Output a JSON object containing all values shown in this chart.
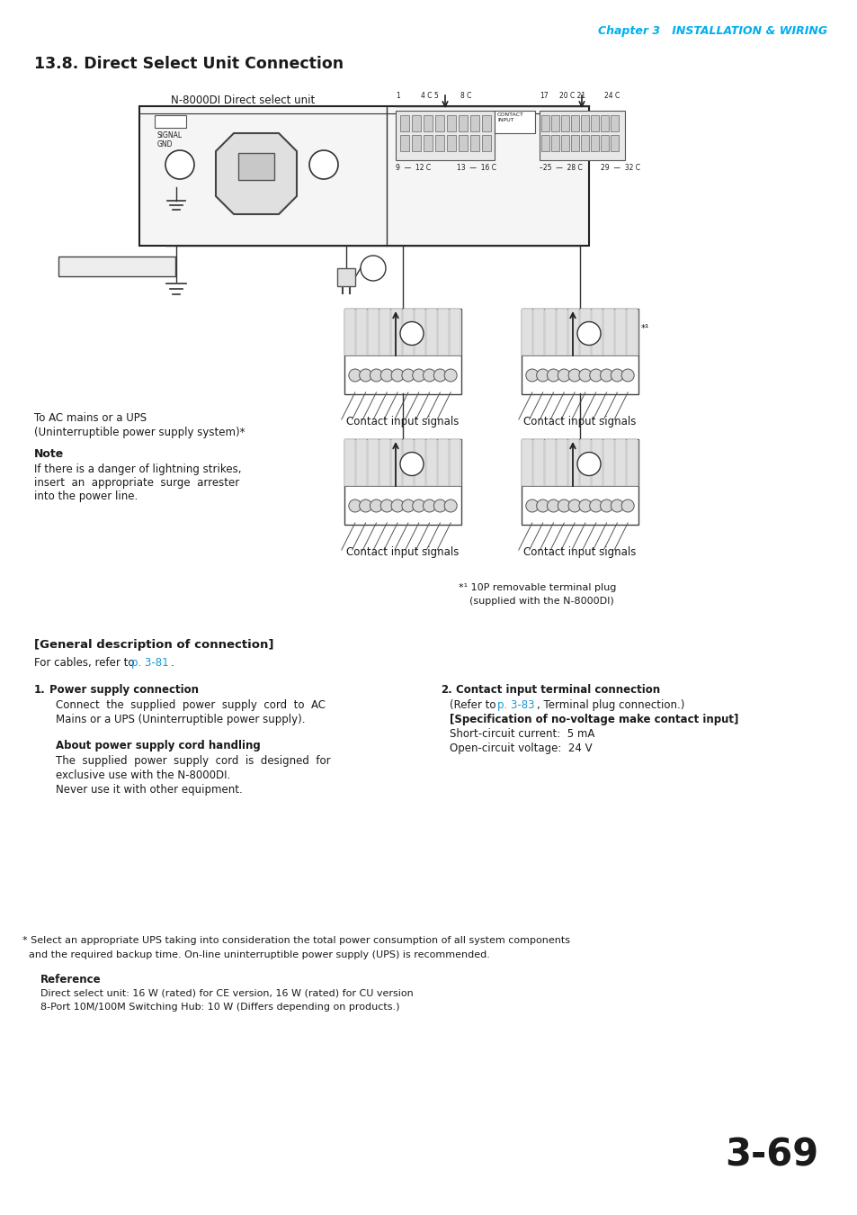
{
  "page_header_chapter": "Chapter 3   INSTALLATION & WIRING",
  "page_header_color": "#00AEEF",
  "section_title": "13.8. Direct Select Unit Connection",
  "diagram_label": "N-8000DI Direct select unit",
  "page_number": "3-69",
  "bg_color": "#ffffff",
  "text_color": "#1a1a1a",
  "blue_color": "#1a96d4",
  "general_desc_title": "[General description of connection]",
  "cables_refer_text1": "For cables, refer to ",
  "cables_refer_link": "p. 3-81",
  "cables_refer_text2": ".",
  "section1_title_num": "1.",
  "section1_title_text": "Power supply connection",
  "section1_body": [
    "Connect  the  supplied  power  supply  cord  to  AC",
    "Mains or a UPS (Uninterruptible power supply)."
  ],
  "section1_sub_title": "About power supply cord handling",
  "section1_sub_body": [
    "The  supplied  power  supply  cord  is  designed  for",
    "exclusive use with the N-8000DI.",
    "Never use it with other equipment."
  ],
  "section2_title_num": "2.",
  "section2_title_text": "Contact input terminal connection",
  "section2_body1": "(Refer to ",
  "section2_body1_link": "p. 3-83",
  "section2_body1_text2": ", Terminal plug connection.)",
  "section2_bold": "[Specification of no-voltage make contact input]",
  "section2_specs": [
    "Short-circuit current:  5 mA",
    "Open-circuit voltage:  24 V"
  ],
  "footnote_star": "* Select an appropriate UPS taking into consideration the total power consumption of all system components",
  "footnote_star2": "  and the required backup time. On-line uninterruptible power supply (UPS) is recommended.",
  "reference_title": "Reference",
  "reference_body": [
    "Direct select unit: 16 W (rated) for CE version, 16 W (rated) for CU version",
    "8-Port 10M/100M Switching Hub: 10 W (Differs depending on products.)"
  ]
}
